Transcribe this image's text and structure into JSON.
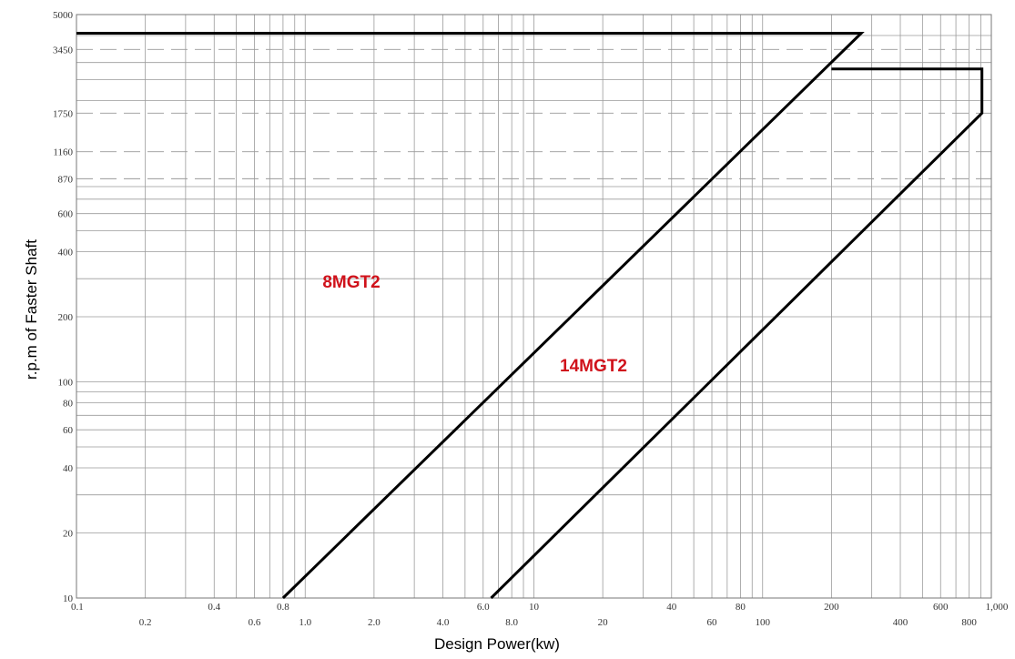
{
  "chart_data": {
    "type": "line",
    "title": "",
    "xlabel": "Design Power(kw)",
    "ylabel": "r.p.m of Faster Shaft",
    "xscale": "log",
    "yscale": "log",
    "xlim": [
      0.1,
      1000
    ],
    "ylim": [
      10,
      5000
    ],
    "grid": true,
    "x_ticks_row1": [
      "0.1",
      "0.4",
      "0.8",
      "6.0",
      "10",
      "40",
      "80",
      "200",
      "600",
      "1,000"
    ],
    "x_ticks_row2": [
      "0.2",
      "0.6",
      "1.0",
      "2.0",
      "4.0",
      "8.0",
      "20",
      "60",
      "100",
      "400",
      "800"
    ],
    "y_ticks": [
      "5000",
      "3450",
      "1750",
      "1160",
      "870",
      "600",
      "400",
      "200",
      "100",
      "80",
      "60",
      "40",
      "20",
      "10"
    ],
    "region_labels": [
      {
        "text": "8MGT2",
        "color": "#d0121b"
      },
      {
        "text": "14MGT2",
        "color": "#d0121b"
      }
    ],
    "series": [
      {
        "values": [
          [
            0.8,
            10
          ],
          [
            270,
            4100
          ],
          [
            0.1,
            4100
          ]
        ]
      },
      {
        "values": [
          [
            6.5,
            10
          ],
          [
            910,
            1750
          ],
          [
            910,
            2800
          ],
          [
            200,
            2800
          ]
        ]
      }
    ]
  }
}
